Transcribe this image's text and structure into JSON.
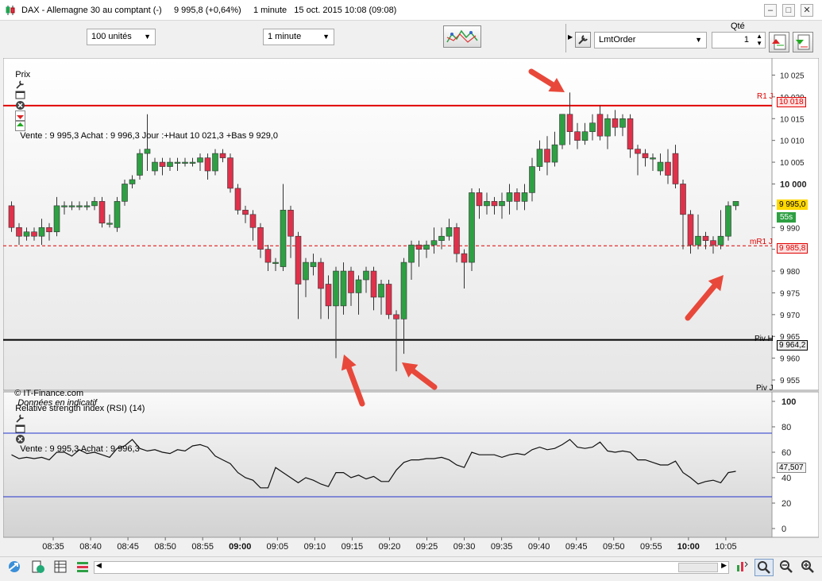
{
  "window": {
    "title": "DAX - Allemagne 30 au comptant (-)     9 995,8 (+0,64%)     1 minute   15 oct. 2015 10:08 (09:08)",
    "min": "–",
    "max": "□",
    "close": "✕"
  },
  "toolbar": {
    "units_select": "100 unités",
    "interval_select": "1 minute",
    "order_type_select": "LmtOrder",
    "qty_label": "Qté",
    "qty_value": "1"
  },
  "price_panel": {
    "title": "Prix",
    "info": "Vente : 9 995,3 Achat : 9 996,3 Jour :+Haut 10 021,3 +Bas 9 929,0",
    "copyright": "© IT-Finance.com",
    "disclaimer": "Données en indicatif",
    "y_ticks": [
      "10 025",
      "10 020",
      "10 015",
      "10 010",
      "10 005",
      "10 000",
      "9 995",
      "9 990",
      "9 985",
      "9 980",
      "9 975",
      "9 970",
      "9 965",
      "9 960",
      "9 955"
    ],
    "labels": {
      "r1": "R1 J",
      "r1_value": "10 018",
      "mr1": "mR1 J",
      "mr1_value": "9 985,8",
      "piv": "Piv H",
      "piv_value": "9 964,2",
      "piv2": "Piv J",
      "last": "9 995,0",
      "timer": "55s"
    },
    "colors": {
      "up": "#2ea043",
      "down": "#e0314b",
      "resistance": "#e00000",
      "pivot": "#000000",
      "arrow": "#e8483a"
    }
  },
  "rsi_panel": {
    "title": "Relative strength index (RSI) (14)",
    "info": "Vente : 9 995,3 Achat : 9 996,3",
    "y_ticks": [
      "100",
      "80",
      "60",
      "40",
      "20",
      "0"
    ],
    "current": "47,507"
  },
  "time_axis": [
    "08:35",
    "08:40",
    "08:45",
    "08:50",
    "08:55",
    "09:00",
    "09:05",
    "09:10",
    "09:15",
    "09:20",
    "09:25",
    "09:30",
    "09:35",
    "09:40",
    "09:45",
    "09:50",
    "09:55",
    "10:00",
    "10:05"
  ],
  "chart_data": {
    "type": "candlestick",
    "ylim": [
      9953,
      10026
    ],
    "levels": {
      "R1 J": 10018,
      "mR1 J": 9985.8,
      "Piv H": 9964.2
    },
    "candles": [
      [
        9995,
        9990,
        9996,
        9989
      ],
      [
        9990,
        9988,
        9991,
        9986
      ],
      [
        9988,
        9989,
        9990,
        9987
      ],
      [
        9989,
        9988,
        9990,
        9987
      ],
      [
        9988,
        9990,
        9992,
        9986
      ],
      [
        9990,
        9989,
        9991,
        9987
      ],
      [
        9989,
        9995,
        9997,
        9988
      ],
      [
        9995,
        9995,
        9996,
        9993
      ],
      [
        9995,
        9995,
        9996,
        9994
      ],
      [
        9995,
        9995,
        9996,
        9994
      ],
      [
        9995,
        9995,
        9996,
        9994
      ],
      [
        9995,
        9996,
        9997,
        9994
      ],
      [
        9996,
        9991,
        9997,
        9990
      ],
      [
        9991,
        9991,
        9993,
        9990
      ],
      [
        9990,
        9996,
        9997,
        9989
      ],
      [
        9996,
        10000,
        10001,
        9995
      ],
      [
        10000,
        10001,
        10002,
        9999
      ],
      [
        10002,
        10007,
        10008,
        10001
      ],
      [
        10007,
        10008,
        10016,
        10003
      ],
      [
        10003,
        10005,
        10006,
        10002
      ],
      [
        10005,
        10004,
        10006,
        10002
      ],
      [
        10004,
        10005,
        10006,
        10003
      ],
      [
        10005,
        10005,
        10006,
        10003
      ],
      [
        10005,
        10005,
        10006,
        10004
      ],
      [
        10005,
        10005,
        10006,
        10004
      ],
      [
        10005,
        10006,
        10007,
        10003
      ],
      [
        10006,
        10003,
        10007,
        10001
      ],
      [
        10003,
        10007,
        10008,
        10002
      ],
      [
        10007,
        10006,
        10008,
        10005
      ],
      [
        10006,
        9999,
        10007,
        9998
      ],
      [
        9999,
        9994,
        10000,
        9993
      ],
      [
        9994,
        9993,
        9995,
        9991
      ],
      [
        9993,
        9990,
        9994,
        9987
      ],
      [
        9990,
        9985,
        9991,
        9983
      ],
      [
        9985,
        9982,
        9986,
        9980
      ],
      [
        9982,
        9982,
        9983,
        9980
      ],
      [
        9981,
        9994,
        10000,
        9980
      ],
      [
        9994,
        9988,
        9995,
        9983
      ],
      [
        9988,
        9977,
        9989,
        9969
      ],
      [
        9978,
        9982,
        9983,
        9974
      ],
      [
        9981,
        9982,
        9984,
        9979
      ],
      [
        9982,
        9976,
        9983,
        9969
      ],
      [
        9977,
        9972,
        9979,
        9969
      ],
      [
        9972,
        9980,
        9981,
        9960
      ],
      [
        9972,
        9980,
        9982,
        9970
      ],
      [
        9980,
        9975,
        9981,
        9972
      ],
      [
        9975,
        9978,
        9979,
        9970
      ],
      [
        9978,
        9980,
        9981,
        9975
      ],
      [
        9980,
        9974,
        9981,
        9971
      ],
      [
        9974,
        9977,
        9978,
        9970
      ],
      [
        9977,
        9970,
        9978,
        9969
      ],
      [
        9970,
        9969,
        9971,
        9957
      ],
      [
        9969,
        9982,
        9983,
        9961
      ],
      [
        9982,
        9986,
        9987,
        9978
      ],
      [
        9986,
        9985,
        9987,
        9981
      ],
      [
        9985,
        9986,
        9987,
        9983
      ],
      [
        9986,
        9987,
        9990,
        9984
      ],
      [
        9987,
        9988,
        9990,
        9985
      ],
      [
        9988,
        9990,
        9992,
        9987
      ],
      [
        9990,
        9984,
        9991,
        9982
      ],
      [
        9984,
        9982,
        9985,
        9976
      ],
      [
        9982,
        9998,
        9999,
        9980
      ],
      [
        9998,
        9995,
        9999,
        9992
      ],
      [
        9995,
        9996,
        9998,
        9993
      ],
      [
        9996,
        9995,
        9997,
        9993
      ],
      [
        9995,
        9996,
        9998,
        9992
      ],
      [
        9996,
        9998,
        10000,
        9993
      ],
      [
        9998,
        9996,
        9999,
        9994
      ],
      [
        9996,
        9998,
        10000,
        9994
      ],
      [
        9998,
        10004,
        10006,
        9996
      ],
      [
        10004,
        10008,
        10010,
        10003
      ],
      [
        10008,
        10005,
        10011,
        10002
      ],
      [
        10005,
        10009,
        10012,
        10004
      ],
      [
        10009,
        10016,
        10016,
        10008
      ],
      [
        10016,
        10012,
        10021,
        10009
      ],
      [
        10012,
        10010,
        10014,
        10008
      ],
      [
        10010,
        10012,
        10014,
        10009
      ],
      [
        10012,
        10014,
        10016,
        10010
      ],
      [
        10016,
        10011,
        10018,
        10010
      ],
      [
        10011,
        10015,
        10016,
        10008
      ],
      [
        10015,
        10013,
        10017,
        10011
      ],
      [
        10013,
        10015,
        10016,
        10011
      ],
      [
        10015,
        10008,
        10016,
        10006
      ],
      [
        10008,
        10007,
        10009,
        10002
      ],
      [
        10007,
        10006,
        10008,
        10004
      ],
      [
        10006,
        10006,
        10007,
        10003
      ],
      [
        10003,
        10005,
        10007,
        10002
      ],
      [
        10005,
        10002,
        10008,
        10000
      ],
      [
        10007,
        10000,
        10009,
        9999
      ],
      [
        10000,
        9993,
        10001,
        9985
      ],
      [
        9993,
        9986,
        9994,
        9984
      ],
      [
        9986,
        9988,
        9993,
        9985
      ],
      [
        9988,
        9987,
        9989,
        9985
      ],
      [
        9987,
        9986,
        9988,
        9984
      ],
      [
        9986,
        9988,
        9994,
        9985
      ],
      [
        9988,
        9995,
        9996,
        9987
      ],
      [
        9995,
        9996,
        9996,
        9994
      ]
    ],
    "rsi": [
      58,
      55,
      56,
      55,
      56,
      54,
      60,
      60,
      57,
      62,
      59,
      60,
      58,
      56,
      63,
      65,
      70,
      63,
      61,
      62,
      60,
      59,
      62,
      61,
      65,
      66,
      64,
      57,
      54,
      51,
      44,
      40,
      38,
      32,
      32,
      48,
      44,
      40,
      36,
      40,
      38,
      35,
      33,
      44,
      44,
      40,
      42,
      39,
      41,
      37,
      37,
      46,
      52,
      54,
      54,
      55,
      55,
      56,
      54,
      50,
      48,
      60,
      58,
      58,
      58,
      56,
      58,
      59,
      58,
      62,
      64,
      62,
      63,
      66,
      70,
      64,
      63,
      64,
      68,
      61,
      60,
      61,
      60,
      54,
      54,
      52,
      50,
      50,
      53,
      44,
      40,
      35,
      37,
      38,
      36,
      44,
      45
    ]
  }
}
